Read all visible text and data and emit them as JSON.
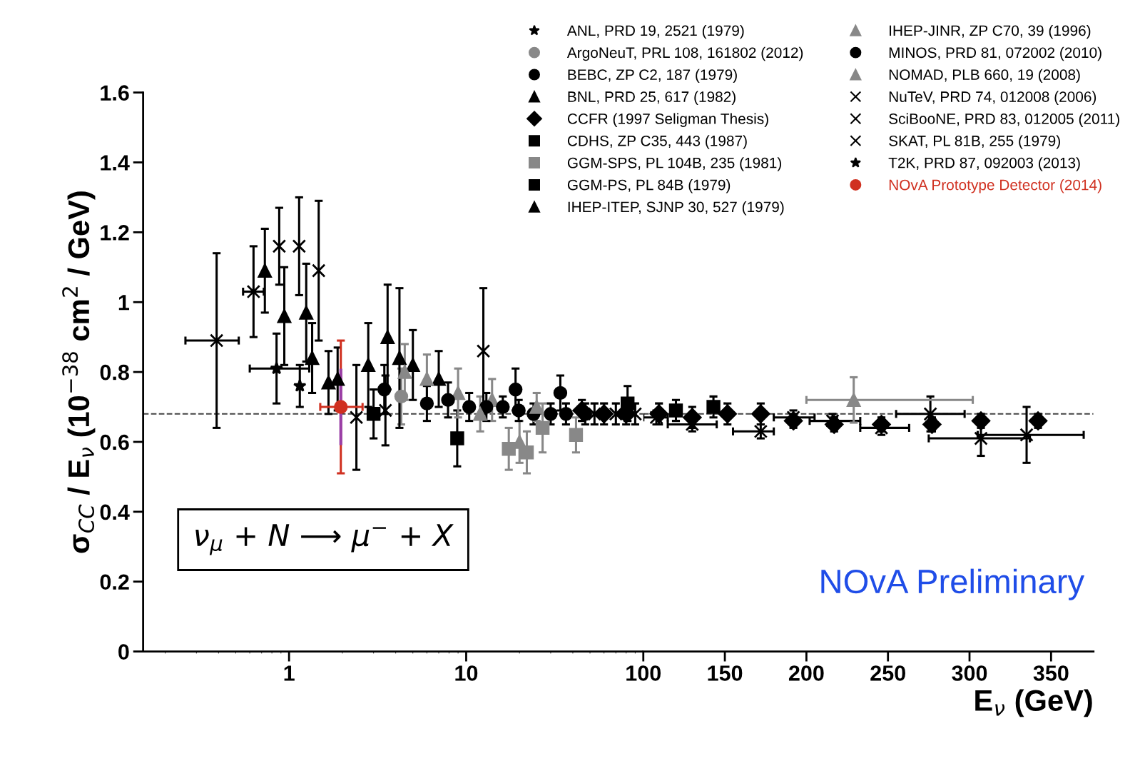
{
  "chart_data": [
    {
      "type": "scatter",
      "ylabel": "σ$_{CC}$ / E$_{ν}$ (10$^{−38}$ cm$^{2}$ / GeV)",
      "xlim": [
        0.15,
        100
      ],
      "ylim": [
        0,
        1.6
      ],
      "xticks": [
        1,
        10
      ],
      "yticks": [
        0,
        0.2,
        0.4,
        0.6,
        0.8,
        1,
        1.2,
        1.4,
        1.6
      ],
      "log": "x",
      "grid": false,
      "legend": "top right",
      "tick_labels": "xy",
      "ref_lines": [
        {
          "axis": "y",
          "value": 0.68,
          "line_style": "dashed",
          "color": "#444444"
        }
      ],
      "annotations": [
        "ν$_{μ}$ + N ⟶ μ$^{−}$ + X"
      ],
      "series": [
        {
          "name": "ANL, PRD 19, 2521 (1979)",
          "color": "#000000",
          "marker": "star",
          "x": [
            1.15
          ],
          "values": [
            0.76
          ],
          "errors": [
            0.06
          ]
        },
        {
          "name": "ArgoNeuT, PRL 108, 161802 (2012)",
          "color": "#888888",
          "marker": "circle",
          "x": [
            4.3
          ],
          "values": [
            0.73
          ],
          "errors": [
            0.08
          ]
        },
        {
          "name": "BEBC, ZP C2, 187 (1979)",
          "color": "#000000",
          "marker": "circle",
          "x": [
            19,
            34
          ],
          "values": [
            0.75,
            0.74
          ],
          "errors": [
            0.06,
            0.05
          ]
        },
        {
          "name": "BNL, PRD 25, 617 (1982)",
          "color": "#000000",
          "marker": "triangle",
          "x": [
            0.73,
            0.94,
            1.25,
            1.35,
            1.67,
            1.88,
            2.8,
            3.6,
            4.2
          ],
          "values": [
            1.09,
            0.96,
            0.97,
            0.84,
            0.77,
            0.78,
            0.82,
            0.9,
            0.84
          ],
          "errors": [
            0.12,
            0.14,
            0.14,
            0.1,
            0.09,
            0.09,
            0.12,
            0.15,
            0.2
          ]
        },
        {
          "name": "CCFR (1997 Seligman Thesis)",
          "color": "#000000",
          "marker": "diamond",
          "x": [
            45,
            60,
            80
          ],
          "values": [
            0.69,
            0.68,
            0.68
          ],
          "errors": [
            0.03,
            0.03,
            0.03
          ]
        },
        {
          "name": "CDHS, ZP C35, 443 (1987)",
          "color": "#000000",
          "marker": "square",
          "x": [
            81.5
          ],
          "values": [
            0.71
          ],
          "errors": [
            0.05
          ]
        },
        {
          "name": "GGM-SPS, PL 104B, 235 (1981)",
          "color": "#888888",
          "marker": "square",
          "x": [
            17.4,
            22,
            27,
            41.7
          ],
          "values": [
            0.58,
            0.57,
            0.64,
            0.62
          ],
          "errors": [
            0.06,
            0.06,
            0.07,
            0.05
          ]
        },
        {
          "name": "GGM-PS, PL 84B (1979)",
          "color": "#000000",
          "marker": "square",
          "x": [
            3.0,
            8.9
          ],
          "values": [
            0.68,
            0.61
          ],
          "errors": [
            0.07,
            0.08
          ]
        },
        {
          "name": "IHEP-ITEP, SJNP 30, 527 (1979)",
          "color": "#000000",
          "marker": "triangle",
          "x": [
            5,
            7
          ],
          "values": [
            0.82,
            0.78
          ],
          "errors": [
            0.1,
            0.08
          ]
        },
        {
          "name": "IHEP-JINR, ZP C70, 39 (1996)",
          "color": "#888888",
          "marker": "triangle",
          "x": [
            4.5,
            6,
            9,
            14,
            20
          ],
          "values": [
            0.8,
            0.78,
            0.74,
            0.72,
            0.6
          ],
          "errors": [
            0.08,
            0.07,
            0.07,
            0.06,
            0.06
          ]
        },
        {
          "name": "MINOS, PRD 81, 072002 (2010)",
          "color": "#000000",
          "marker": "circle",
          "x": [
            3.45,
            6.0,
            7.9,
            10.4,
            13,
            16.1,
            19.8,
            24,
            30,
            36.6,
            47
          ],
          "values": [
            0.75,
            0.71,
            0.72,
            0.7,
            0.7,
            0.7,
            0.69,
            0.68,
            0.68,
            0.68,
            0.68
          ],
          "errors": [
            0.07,
            0.05,
            0.05,
            0.04,
            0.04,
            0.03,
            0.03,
            0.03,
            0.03,
            0.03,
            0.03
          ]
        },
        {
          "name": "NOMAD, PLB 660, 19 (2008)",
          "color": "#888888",
          "marker": "triangle",
          "x": [
            12,
            25
          ],
          "values": [
            0.68,
            0.7
          ],
          "errors": [
            0.05,
            0.04
          ]
        },
        {
          "name": "NuTeV, PRD 74, 012008 (2006)",
          "color": "#000000",
          "marker": "cross",
          "x": [
            53,
            70,
            90
          ],
          "values": [
            0.68,
            0.68,
            0.68
          ],
          "errors": [
            0.03,
            0.03,
            0.03
          ]
        },
        {
          "name": "SciBooNE, PRD 83, 012005 (2011)",
          "color": "#000000",
          "marker": "cross",
          "x": [
            2.4,
            3.5
          ],
          "values": [
            0.67,
            0.69
          ],
          "errors": [
            0.15,
            0.1
          ]
        },
        {
          "name": "SKAT, PL 81B, 255 (1979)",
          "color": "#000000",
          "marker": "cross",
          "x": [
            0.39,
            0.63,
            0.88,
            1.14,
            1.47,
            12.5
          ],
          "values": [
            0.89,
            1.03,
            1.16,
            1.16,
            1.09,
            0.86
          ],
          "errors": [
            0.25,
            0.13,
            0.11,
            0.14,
            0.2,
            0.18
          ],
          "xerrors": [
            [
              0.26,
              0.52
            ],
            [
              0.55,
              0.72
            ],
            null,
            null,
            null,
            null
          ]
        },
        {
          "name": "T2K, PRD 87, 092003 (2013)",
          "color": "#000000",
          "marker": "star",
          "x": [
            0.85
          ],
          "values": [
            0.81
          ],
          "errors": [
            0.1
          ],
          "xerrors": [
            [
              0.6,
              1.3
            ]
          ]
        },
        {
          "name": "NOvA Prototype Detector (2014)",
          "color": "#d03020",
          "marker": "circle",
          "x": [
            1.96
          ],
          "values": [
            0.7
          ],
          "errors": [
            0.19
          ],
          "xerrors": [
            [
              1.5,
              2.6
            ]
          ]
        },
        {
          "type": "line",
          "color": "#9a3fa6",
          "marker": "none",
          "x": [
            1.96,
            1.96
          ],
          "values": [
            0.595,
            0.805
          ]
        }
      ]
    },
    {
      "type": "scatter",
      "xlabel": "E$_{ν}$ (GeV)",
      "xlim": [
        100,
        376
      ],
      "ylim": [
        0,
        1.6
      ],
      "xticks": [
        100,
        150,
        200,
        250,
        300,
        350
      ],
      "grid": false,
      "tick_labels": "x",
      "ref_lines": [
        {
          "axis": "y",
          "value": 0.68,
          "line_style": "dashed",
          "color": "#444444"
        }
      ],
      "annotations": [
        "NOvA Preliminary"
      ],
      "series": [
        {
          "color": "#000000",
          "marker": "diamond",
          "x": [
            109.6,
            130,
            151.6,
            172,
            192,
            217,
            246,
            277,
            307,
            342
          ],
          "values": [
            0.68,
            0.67,
            0.68,
            0.68,
            0.66,
            0.65,
            0.65,
            0.65,
            0.66,
            0.66
          ],
          "errors": [
            0.03,
            0.03,
            0.03,
            0.03,
            0.02,
            0.02,
            0.02,
            0.02,
            0.02,
            0.02
          ]
        },
        {
          "color": "#000000",
          "marker": "cross",
          "x": [
            108,
            130,
            172,
            192,
            216,
            246,
            276,
            307,
            335
          ],
          "values": [
            0.67,
            0.65,
            0.63,
            0.67,
            0.66,
            0.64,
            0.68,
            0.61,
            0.62
          ],
          "errors": [
            0.02,
            0.02,
            0.02,
            0.02,
            0.02,
            0.02,
            0.05,
            0.05,
            0.08
          ],
          "xerrors": [
            [
              100,
              115
            ],
            [
              115,
              145
            ],
            [
              155,
              180
            ],
            [
              180,
              205
            ],
            [
              202,
              233
            ],
            [
              233,
              263
            ],
            [
              255,
              297
            ],
            [
              275,
              337
            ],
            [
              305,
              370
            ]
          ]
        },
        {
          "color": "#000000",
          "marker": "square",
          "x": [
            120,
            143
          ],
          "values": [
            0.69,
            0.7
          ],
          "errors": [
            0.03,
            0.03
          ]
        },
        {
          "color": "#888888",
          "marker": "triangle",
          "x": [
            229
          ],
          "values": [
            0.72
          ],
          "errors": [
            0.065
          ],
          "xerrors": [
            [
              200,
              302
            ]
          ]
        }
      ]
    }
  ]
}
